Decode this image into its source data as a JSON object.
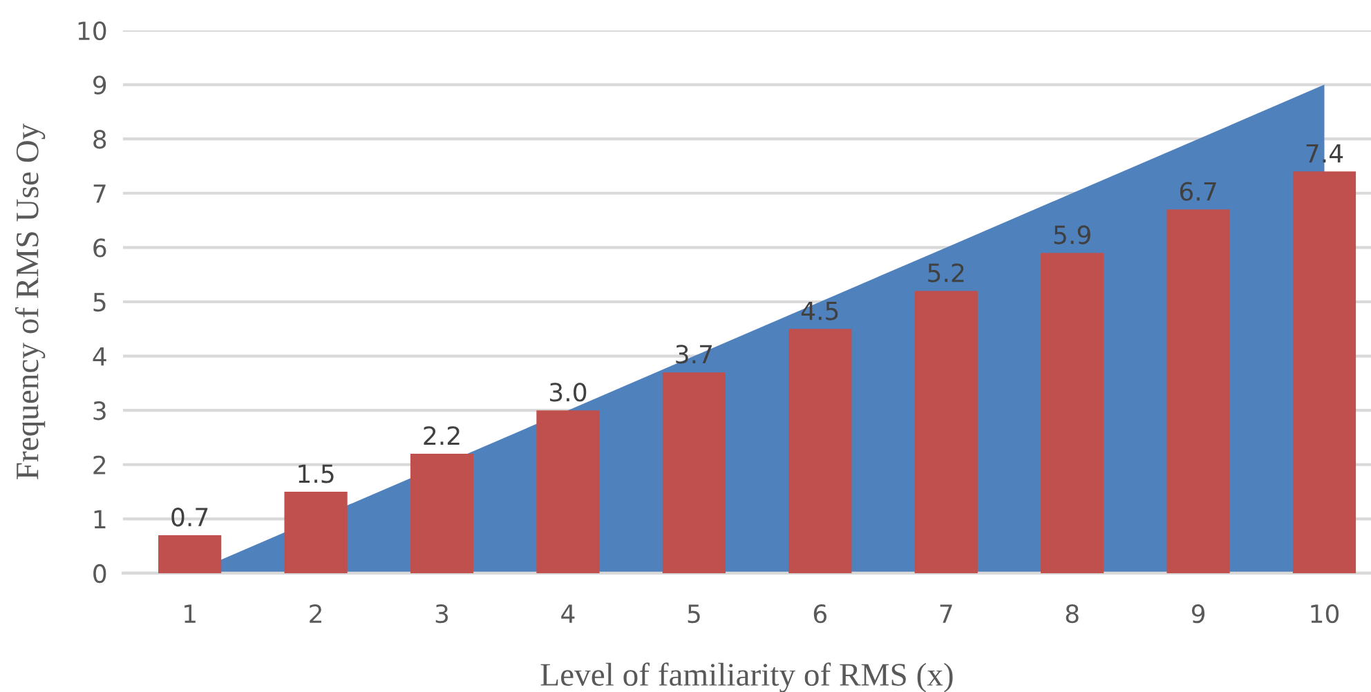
{
  "chart_data": {
    "type": "bar",
    "xlabel": "Level of familiarity of RMS (x)",
    "ylabel": "Frequency of RMS Use Oy",
    "categories": [
      "1",
      "2",
      "3",
      "4",
      "5",
      "6",
      "7",
      "8",
      "9",
      "10"
    ],
    "series": [
      {
        "type": "area",
        "color": "#4f81bd",
        "values": [
          0,
          null,
          null,
          3,
          4,
          5,
          6,
          7,
          8,
          9
        ]
      },
      {
        "color": "#c0504d",
        "values": [
          0.7,
          1.5,
          2.2,
          3.0,
          3.7,
          4.5,
          5.2,
          5.9,
          6.7,
          7.4
        ],
        "value_labels": [
          "0.7",
          "1.5",
          "2.2",
          "3.0",
          "3.7",
          "4.5",
          "5.2",
          "5.9",
          "6.7",
          "7.4"
        ]
      }
    ],
    "ylim": [
      0,
      10
    ],
    "yticks": [
      0,
      1,
      2,
      3,
      4,
      5,
      6,
      7,
      8,
      9,
      10
    ],
    "grid": "y"
  }
}
